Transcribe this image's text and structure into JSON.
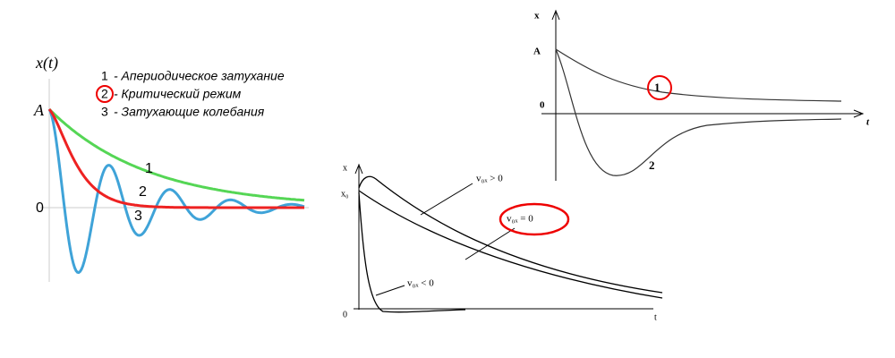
{
  "left_diagram": {
    "axis_label": "x(t)",
    "start_label": "A",
    "zero_label": "0",
    "legend": [
      {
        "number": "1",
        "text": "- Апериодическое затухание"
      },
      {
        "number": "2",
        "text": "- Критический режим"
      },
      {
        "number": "3",
        "text": "- Затухающие колебания"
      }
    ],
    "curve_labels": [
      "1",
      "2",
      "3"
    ]
  },
  "top_right_diagram": {
    "axis_label": "x",
    "start_label": "A",
    "zero_label": "0",
    "time_label": "t",
    "curve_labels": [
      "1",
      "2"
    ]
  },
  "bottom_diagram": {
    "axis_label": "x",
    "start_label": "x₀",
    "zero_label": "0",
    "time_label": "t",
    "curve_labels": [
      "v₀ₓ > 0",
      "v₀ₓ = 0",
      "v₀ₓ < 0"
    ]
  }
}
